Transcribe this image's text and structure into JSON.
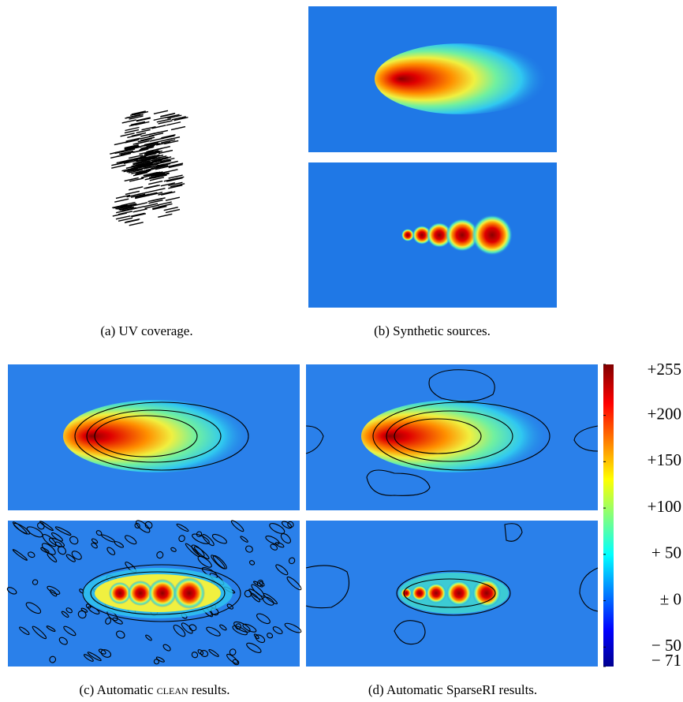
{
  "captions": [
    "(a) UV coverage.",
    "(b) Synthetic sources.",
    [
      "(c) Automatic ",
      "clean",
      " results."
    ],
    "(d) Automatic SparseRI results."
  ],
  "colorbar": {
    "ticks": [
      {
        "value": 255,
        "label": "+255"
      },
      {
        "value": 200,
        "label": "+200"
      },
      {
        "value": 150,
        "label": "+150"
      },
      {
        "value": 100,
        "label": "+100"
      },
      {
        "value": 50,
        "label": "+ 50"
      },
      {
        "value": 0,
        "label": "± 0"
      },
      {
        "value": -50,
        "label": "− 50"
      },
      {
        "value": -71,
        "label": "− 71"
      }
    ]
  }
}
